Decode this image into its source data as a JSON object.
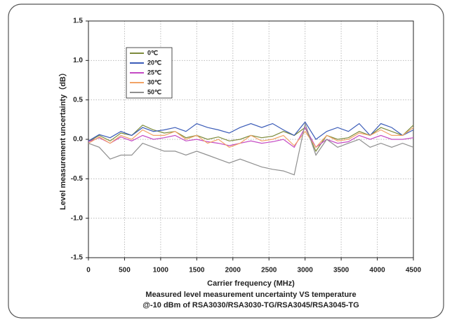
{
  "chart_data": {
    "type": "line",
    "x_label": "Carrier frequency (MHz)",
    "y_label": "Level measurement uncertainty（dB）",
    "caption": [
      "Measured level measurement uncertainty VS temperature",
      "@-10 dBm of RSA3030/RSA3030-TG/RSA3045/RSA3045-TG"
    ],
    "x": [
      0,
      150,
      300,
      450,
      600,
      750,
      900,
      1050,
      1200,
      1350,
      1500,
      1650,
      1800,
      1950,
      2100,
      2250,
      2400,
      2550,
      2700,
      2850,
      3000,
      3150,
      3300,
      3450,
      3600,
      3750,
      3900,
      4050,
      4200,
      4350,
      4500
    ],
    "series": [
      {
        "name": "0℃",
        "color": "#7d8b3c",
        "values": [
          -0.03,
          0.05,
          -0.02,
          0.08,
          0.05,
          0.18,
          0.12,
          0.08,
          0.1,
          0.02,
          0.05,
          0.0,
          0.03,
          -0.02,
          0.0,
          0.05,
          0.02,
          0.04,
          0.1,
          0.05,
          0.15,
          -0.15,
          0.05,
          0.0,
          0.02,
          0.1,
          0.05,
          0.15,
          0.1,
          0.05,
          0.18
        ]
      },
      {
        "name": "20℃",
        "color": "#3b5cb8",
        "values": [
          -0.02,
          0.06,
          0.02,
          0.1,
          0.05,
          0.15,
          0.1,
          0.12,
          0.15,
          0.1,
          0.2,
          0.15,
          0.12,
          0.08,
          0.15,
          0.2,
          0.15,
          0.2,
          0.12,
          0.05,
          0.22,
          0.0,
          0.1,
          0.15,
          0.1,
          0.2,
          0.05,
          0.2,
          0.15,
          0.05,
          0.12
        ]
      },
      {
        "name": "25℃",
        "color": "#c44ac4",
        "values": [
          -0.03,
          0.02,
          -0.05,
          0.03,
          -0.02,
          0.05,
          0.0,
          0.02,
          0.05,
          -0.02,
          0.0,
          -0.03,
          -0.05,
          -0.08,
          -0.05,
          -0.02,
          -0.05,
          -0.03,
          0.0,
          -0.1,
          0.15,
          -0.1,
          0.0,
          -0.05,
          -0.03,
          0.05,
          0.0,
          0.05,
          0.0,
          0.0,
          0.02
        ]
      },
      {
        "name": "30℃",
        "color": "#f2a366",
        "values": [
          -0.05,
          0.03,
          -0.05,
          0.05,
          0.0,
          0.12,
          0.05,
          0.05,
          0.1,
          0.0,
          0.05,
          -0.05,
          0.0,
          -0.1,
          -0.05,
          0.05,
          -0.02,
          0.0,
          0.05,
          -0.08,
          0.1,
          -0.1,
          0.05,
          -0.02,
          0.0,
          0.08,
          0.05,
          0.12,
          0.05,
          0.05,
          0.15
        ]
      },
      {
        "name": "50℃",
        "color": "#8f8f8f",
        "values": [
          -0.05,
          -0.1,
          -0.25,
          -0.2,
          -0.2,
          -0.05,
          -0.1,
          -0.15,
          -0.15,
          -0.2,
          -0.15,
          -0.2,
          -0.25,
          -0.3,
          -0.25,
          -0.3,
          -0.35,
          -0.38,
          -0.4,
          -0.45,
          0.2,
          -0.2,
          0.0,
          -0.1,
          -0.05,
          0.0,
          -0.1,
          -0.05,
          -0.1,
          -0.05,
          -0.1
        ]
      }
    ],
    "xlim": [
      0,
      4500
    ],
    "xticks": [
      0,
      500,
      1000,
      1500,
      2000,
      2500,
      3000,
      3500,
      4000,
      4500
    ],
    "ylim": [
      -1.5,
      1.5
    ],
    "yticks": [
      {
        "value": -1.5,
        "label": "-1.5"
      },
      {
        "value": -1.0,
        "label": "-1.0"
      },
      {
        "value": -0.5,
        "label": "-0.5"
      },
      {
        "value": 0,
        "label": "0.0"
      },
      {
        "value": 0.5,
        "label": "0.5"
      },
      {
        "value": 1.0,
        "label": "1.0"
      },
      {
        "value": 1.5,
        "label": "1.5"
      }
    ],
    "grid": true
  }
}
